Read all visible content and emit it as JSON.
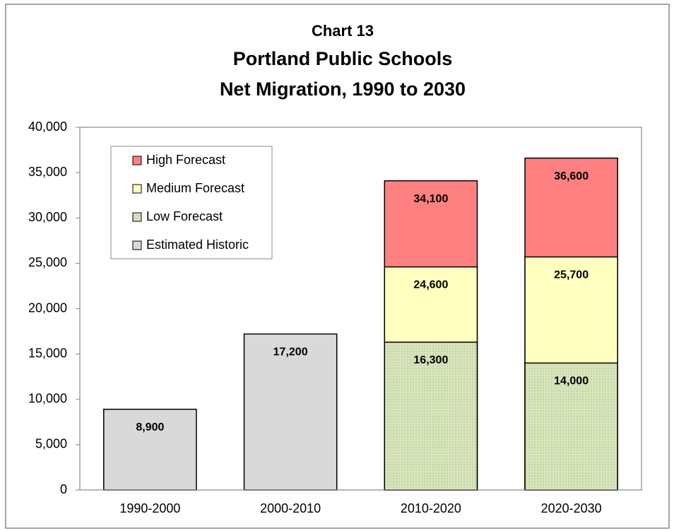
{
  "chart_data": {
    "type": "bar",
    "barmode": "overlay",
    "title": [
      "Chart 13",
      "Portland Public Schools",
      "Net Migration, 1990 to 2030"
    ],
    "categories": [
      "1990-2000",
      "2000-2010",
      "2010-2020",
      "2020-2030"
    ],
    "series": [
      {
        "name": "Estimated Historic",
        "color": "#d9d9d9",
        "values": [
          8900,
          17200,
          null,
          null
        ],
        "value_labels": [
          "8,900",
          "17,200",
          null,
          null
        ]
      },
      {
        "name": "Low Forecast",
        "color": "#d7e4bc",
        "values": [
          null,
          null,
          16300,
          14000
        ],
        "value_labels": [
          null,
          null,
          "16,300",
          "14,000"
        ]
      },
      {
        "name": "Medium Forecast",
        "color": "#ffffc0",
        "values": [
          null,
          null,
          24600,
          25700
        ],
        "value_labels": [
          null,
          null,
          "24,600",
          "25,700"
        ]
      },
      {
        "name": "High Forecast",
        "color": "#ff8080",
        "values": [
          null,
          null,
          34100,
          36600
        ],
        "value_labels": [
          null,
          null,
          "34,100",
          "36,600"
        ]
      }
    ],
    "ylim": [
      0,
      40000
    ],
    "yticks": [
      0,
      {
        "value": 5000,
        "label": "5,000"
      },
      {
        "value": 10000,
        "label": "10,000"
      },
      {
        "value": 15000,
        "label": "15,000"
      },
      {
        "value": 20000,
        "label": "20,000"
      },
      {
        "value": 25000,
        "label": "25,000"
      },
      {
        "value": 30000,
        "label": "30,000"
      },
      {
        "value": 35000,
        "label": "35,000"
      },
      {
        "value": 40000,
        "label": "40,000"
      }
    ],
    "grid": false,
    "legend": "upper left"
  }
}
